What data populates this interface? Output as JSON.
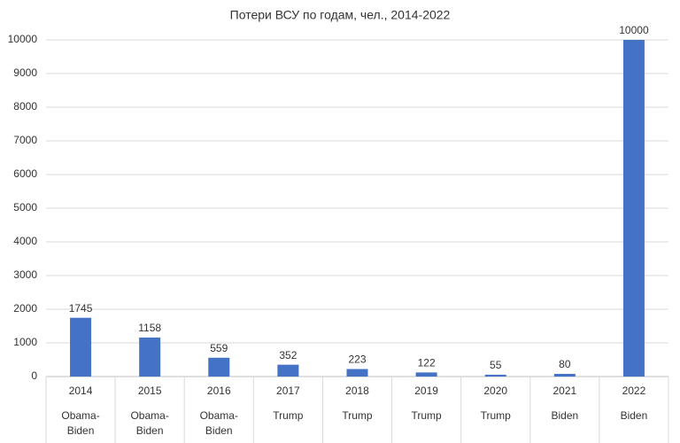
{
  "chart_data": {
    "type": "bar",
    "title": "Потери ВСУ по годам, чел., 2014-2022",
    "categories": [
      "2014",
      "2015",
      "2016",
      "2017",
      "2018",
      "2019",
      "2020",
      "2021",
      "2022"
    ],
    "category_groups": [
      "Obama-Biden",
      "Obama-Biden",
      "Obama-Biden",
      "Trump",
      "Trump",
      "Trump",
      "Trump",
      "Biden",
      "Biden"
    ],
    "values": [
      1745,
      1158,
      559,
      352,
      223,
      122,
      55,
      80,
      10000
    ],
    "color": "#4472c4",
    "ylim": [
      0,
      10000
    ],
    "yticks": [
      0,
      1000,
      2000,
      3000,
      4000,
      5000,
      6000,
      7000,
      8000,
      9000,
      10000
    ],
    "grid": true
  }
}
